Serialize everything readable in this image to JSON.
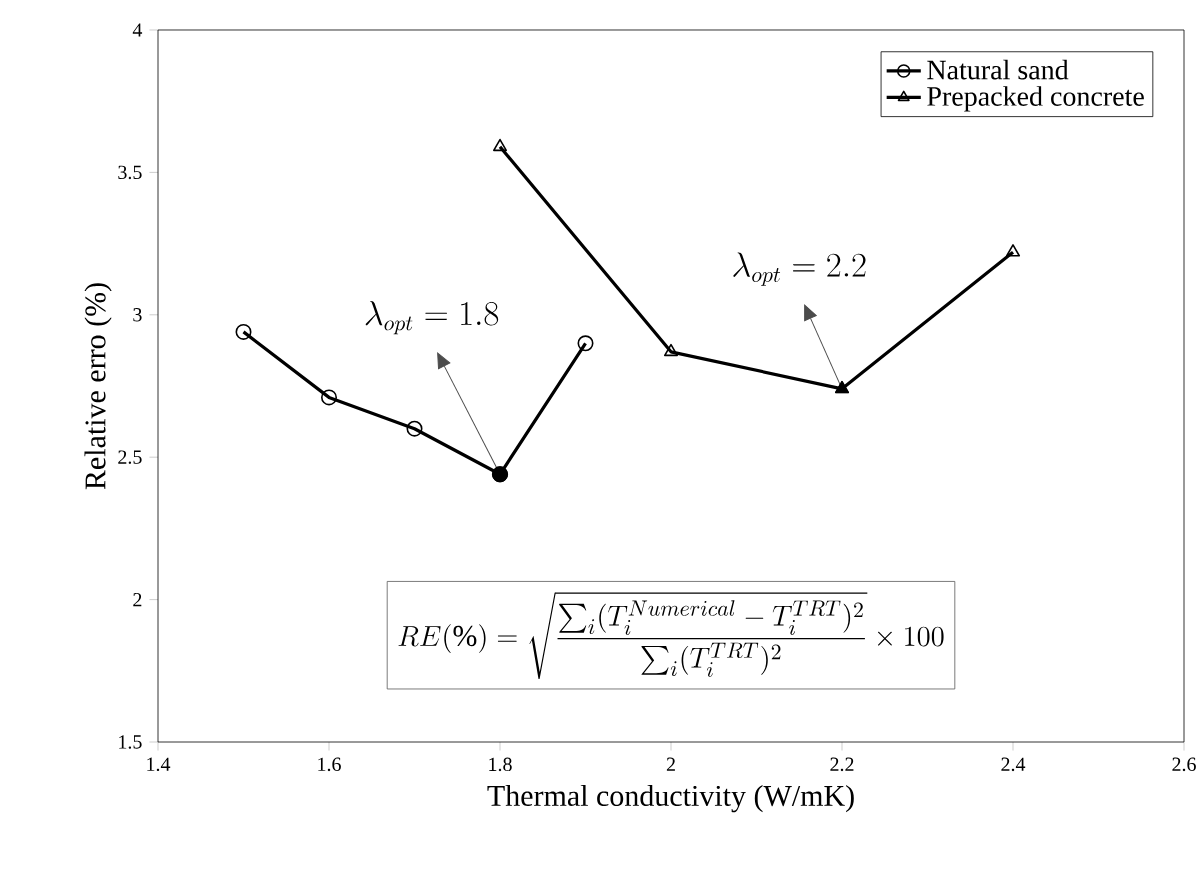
{
  "chart_data": {
    "type": "line",
    "xlabel": "Thermal conductivity  (W/mK)",
    "ylabel": "Relative erro (%)",
    "xlim": [
      1.4,
      2.6
    ],
    "xticks": [
      1.4,
      1.6,
      1.8,
      2,
      2.2,
      2.4,
      2.6
    ],
    "ylim": [
      1.5,
      4
    ],
    "yticks": [
      1.5,
      2,
      2.5,
      3,
      3.5,
      4
    ],
    "series": [
      {
        "name": "Natural sand",
        "color": "#000000",
        "marker": "circle",
        "x": [
          1.5,
          1.6,
          1.7,
          1.8,
          1.9
        ],
        "values": [
          2.94,
          2.71,
          2.6,
          2.44,
          2.9
        ]
      },
      {
        "name": "Prepacked concrete",
        "color": "#000000",
        "marker": "triangle",
        "x": [
          1.8,
          2,
          2.2,
          2.4
        ],
        "values": [
          3.59,
          2.87,
          2.74,
          3.22
        ]
      },
      {
        "type": "scatter",
        "color": "#000000",
        "marker": "circle",
        "x": [
          1.8
        ],
        "values": [
          2.44
        ]
      },
      {
        "type": "scatter",
        "color": "#000000",
        "marker": "triangle",
        "x": [
          2.2
        ],
        "values": [
          2.74
        ]
      }
    ],
    "annotations": [
      "\\lambda_{opt} = 1.8",
      "\\lambda_{opt} = 2.2",
      "RE(\\%) = \\sqrt{\\frac{\\sum_i (T_i^{Numerical} - T_i^{TRT})^2}{\\sum_i (T_i^{TRT})^2}} \\times 100"
    ],
    "legend": "top right",
    "line_style": "solid",
    "grid": false
  }
}
